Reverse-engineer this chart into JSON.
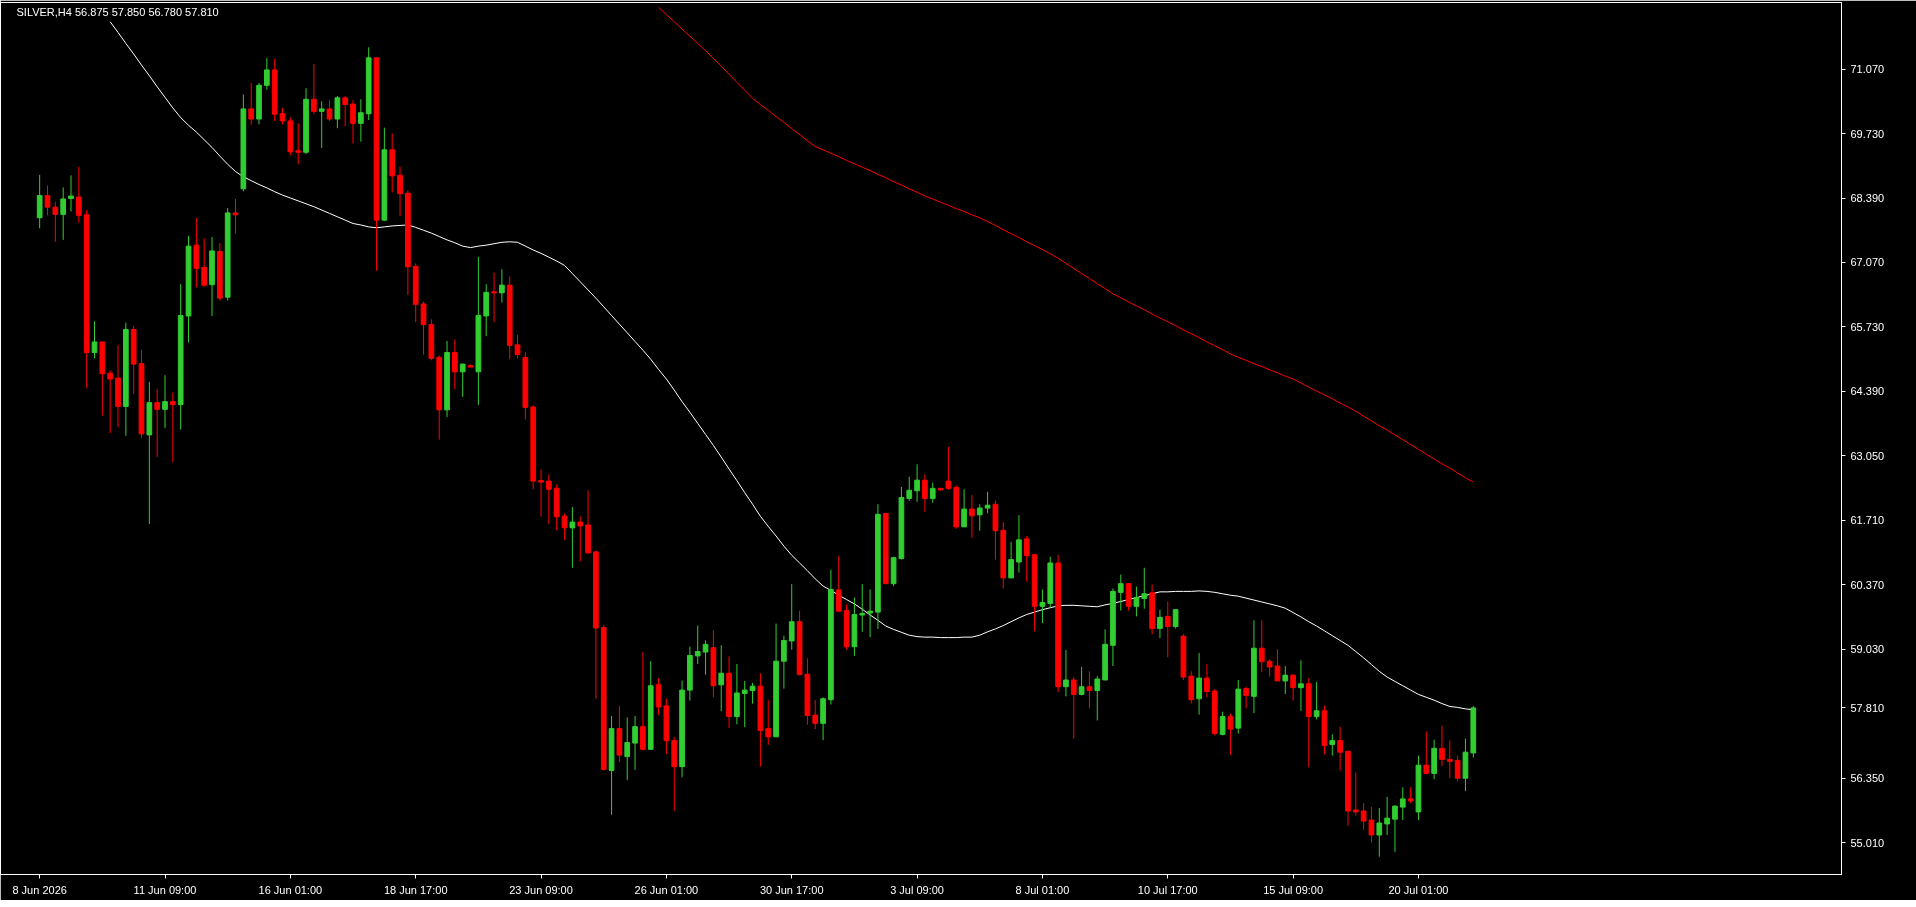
{
  "chart_data": {
    "type": "candlestick",
    "title": "SILVER,H4  56.875 57.850 56.780 57.810",
    "categories": [
      "8 Jun 2026",
      null,
      null,
      null,
      null,
      null,
      null,
      null,
      null,
      null,
      null,
      null,
      null,
      null,
      null,
      null,
      "11 Jun 09:00",
      null,
      null,
      null,
      null,
      null,
      null,
      null,
      null,
      null,
      null,
      null,
      null,
      null,
      null,
      null,
      "16 Jun 01:00",
      null,
      null,
      null,
      null,
      null,
      null,
      null,
      null,
      null,
      null,
      null,
      null,
      null,
      null,
      null,
      "18 Jun 17:00",
      null,
      null,
      null,
      null,
      null,
      null,
      null,
      null,
      null,
      null,
      null,
      null,
      null,
      null,
      null,
      "23 Jun 09:00",
      null,
      null,
      null,
      null,
      null,
      null,
      null,
      null,
      null,
      null,
      null,
      null,
      null,
      null,
      null,
      "26 Jun 01:00",
      null,
      null,
      null,
      null,
      null,
      null,
      null,
      null,
      null,
      null,
      null,
      null,
      null,
      null,
      null,
      "30 Jun 17:00",
      null,
      null,
      null,
      null,
      null,
      null,
      null,
      null,
      null,
      null,
      null,
      null,
      null,
      null,
      null,
      "3 Jul 09:00",
      null,
      null,
      null,
      null,
      null,
      null,
      null,
      null,
      null,
      null,
      null,
      null,
      null,
      null,
      null,
      "8 Jul 01:00",
      null,
      null,
      null,
      null,
      null,
      null,
      null,
      null,
      null,
      null,
      null,
      null,
      null,
      null,
      null,
      "10 Jul 17:00",
      null,
      null,
      null,
      null,
      null,
      null,
      null,
      null,
      null,
      null,
      null,
      null,
      null,
      null,
      null,
      "15 Jul 09:00",
      null,
      null,
      null,
      null,
      null,
      null,
      null,
      null,
      null,
      null,
      null,
      null,
      null,
      null,
      null,
      "20 Jul 01:00",
      null,
      null,
      null,
      null,
      null,
      null,
      null
    ],
    "ohlc": [
      [
        67.99,
        68.88,
        67.77,
        68.45
      ],
      [
        68.45,
        68.66,
        68.04,
        68.21
      ],
      [
        68.21,
        68.32,
        67.49,
        68.06
      ],
      [
        68.06,
        68.62,
        67.53,
        68.38
      ],
      [
        68.39,
        68.87,
        68.12,
        68.44
      ],
      [
        68.42,
        69.05,
        67.89,
        68.04
      ],
      [
        68.05,
        68.15,
        64.45,
        65.19
      ],
      [
        65.19,
        65.84,
        65.07,
        65.41
      ],
      [
        65.41,
        65.41,
        63.88,
        64.75
      ],
      [
        64.76,
        64.82,
        63.52,
        64.64
      ],
      [
        64.66,
        65.35,
        63.64,
        64.07
      ],
      [
        64.07,
        65.81,
        63.46,
        65.67
      ],
      [
        65.67,
        65.74,
        64.33,
        64.95
      ],
      [
        64.96,
        65.25,
        63.42,
        63.5
      ],
      [
        63.48,
        64.58,
        61.63,
        64.15
      ],
      [
        64.15,
        64.43,
        63.02,
        64.01
      ],
      [
        64.01,
        64.72,
        63.62,
        64.17
      ],
      [
        64.17,
        64.36,
        62.91,
        64.11
      ],
      [
        64.11,
        66.61,
        63.59,
        65.96
      ],
      [
        65.95,
        67.61,
        65.4,
        67.4
      ],
      [
        67.42,
        67.99,
        66.54,
        66.94
      ],
      [
        66.96,
        67.56,
        66.56,
        66.59
      ],
      [
        66.6,
        67.59,
        65.95,
        67.3
      ],
      [
        67.29,
        67.46,
        66.27,
        66.32
      ],
      [
        66.34,
        68.19,
        66.27,
        68.09
      ],
      [
        68.09,
        68.38,
        67.66,
        68.05
      ],
      [
        68.59,
        70.55,
        68.54,
        70.25
      ],
      [
        70.25,
        70.79,
        69.92,
        70.04
      ],
      [
        70.04,
        70.79,
        69.93,
        70.74
      ],
      [
        70.74,
        71.31,
        70.65,
        71.06
      ],
      [
        71.06,
        71.29,
        70.0,
        70.14
      ],
      [
        70.15,
        70.27,
        69.93,
        70.0
      ],
      [
        70.0,
        70.08,
        69.29,
        69.36
      ],
      [
        69.38,
        69.95,
        69.1,
        69.35
      ],
      [
        69.35,
        70.68,
        69.31,
        70.45
      ],
      [
        70.45,
        71.18,
        70.15,
        70.2
      ],
      [
        70.2,
        70.41,
        69.44,
        70.25
      ],
      [
        70.25,
        70.43,
        70.0,
        70.04
      ],
      [
        70.04,
        70.52,
        69.85,
        70.48
      ],
      [
        70.48,
        70.52,
        69.89,
        70.34
      ],
      [
        70.35,
        70.43,
        69.53,
        69.95
      ],
      [
        69.95,
        70.45,
        69.57,
        70.17
      ],
      [
        70.15,
        71.53,
        70.02,
        71.31
      ],
      [
        71.31,
        71.31,
        66.89,
        67.94
      ],
      [
        67.94,
        69.86,
        67.92,
        69.4
      ],
      [
        69.4,
        69.74,
        68.52,
        68.86
      ],
      [
        68.87,
        69.05,
        68.02,
        68.49
      ],
      [
        68.5,
        68.56,
        66.39,
        66.97
      ],
      [
        66.98,
        67.04,
        65.82,
        66.19
      ],
      [
        66.2,
        66.25,
        65.15,
        65.77
      ],
      [
        65.77,
        65.88,
        65.03,
        65.07
      ],
      [
        65.09,
        65.13,
        63.38,
        64.0
      ],
      [
        64.0,
        65.43,
        63.85,
        65.19
      ],
      [
        65.19,
        65.46,
        64.43,
        64.79
      ],
      [
        64.79,
        64.96,
        64.27,
        64.95
      ],
      [
        64.92,
        64.94,
        64.88,
        64.89
      ],
      [
        64.79,
        67.18,
        64.1,
        65.96
      ],
      [
        65.95,
        66.61,
        65.53,
        66.44
      ],
      [
        66.45,
        66.85,
        65.82,
        66.43
      ],
      [
        66.43,
        66.92,
        66.23,
        66.59
      ],
      [
        66.59,
        66.77,
        65.05,
        65.34
      ],
      [
        65.35,
        65.56,
        65.07,
        65.15
      ],
      [
        65.09,
        65.2,
        63.8,
        64.05
      ],
      [
        64.06,
        64.1,
        62.35,
        62.52
      ],
      [
        62.53,
        62.76,
        61.78,
        62.5
      ],
      [
        62.52,
        62.66,
        61.63,
        62.35
      ],
      [
        62.37,
        62.45,
        61.5,
        61.78
      ],
      [
        61.79,
        61.85,
        61.3,
        61.55
      ],
      [
        61.55,
        61.98,
        60.72,
        61.67
      ],
      [
        61.67,
        61.79,
        60.85,
        61.59
      ],
      [
        61.61,
        62.33,
        61.01,
        61.03
      ],
      [
        61.05,
        61.07,
        58.0,
        59.47
      ],
      [
        59.48,
        59.53,
        56.51,
        56.53
      ],
      [
        56.51,
        57.64,
        55.59,
        57.38
      ],
      [
        57.38,
        57.85,
        56.68,
        56.83
      ],
      [
        56.8,
        57.61,
        56.31,
        57.09
      ],
      [
        57.08,
        57.64,
        56.52,
        57.42
      ],
      [
        57.42,
        58.97,
        56.93,
        56.95
      ],
      [
        56.95,
        58.78,
        56.95,
        58.27
      ],
      [
        58.29,
        58.43,
        57.66,
        57.83
      ],
      [
        57.85,
        58.0,
        56.85,
        57.13
      ],
      [
        57.13,
        57.21,
        55.67,
        56.59
      ],
      [
        56.59,
        58.38,
        56.37,
        58.18
      ],
      [
        58.18,
        59.08,
        57.96,
        58.9
      ],
      [
        58.89,
        59.52,
        58.72,
        58.98
      ],
      [
        58.97,
        59.21,
        58.5,
        59.13
      ],
      [
        59.06,
        59.42,
        58.03,
        58.27
      ],
      [
        58.29,
        59.11,
        57.74,
        58.53
      ],
      [
        58.53,
        58.88,
        57.39,
        57.63
      ],
      [
        57.63,
        58.72,
        57.47,
        58.12
      ],
      [
        58.11,
        58.37,
        57.41,
        58.18
      ],
      [
        58.17,
        58.33,
        57.9,
        58.26
      ],
      [
        58.26,
        58.53,
        56.59,
        57.34
      ],
      [
        57.38,
        57.97,
        57.04,
        57.21
      ],
      [
        57.21,
        59.56,
        57.21,
        58.78
      ],
      [
        58.78,
        59.31,
        58.21,
        59.21
      ],
      [
        59.2,
        60.38,
        59.02,
        59.6
      ],
      [
        59.6,
        59.83,
        58.5,
        58.5
      ],
      [
        58.51,
        58.84,
        57.46,
        57.65
      ],
      [
        57.66,
        57.97,
        57.37,
        57.49
      ],
      [
        57.49,
        58.03,
        57.14,
        58.0
      ],
      [
        57.98,
        60.68,
        57.88,
        60.27
      ],
      [
        60.26,
        60.97,
        59.81,
        59.82
      ],
      [
        59.83,
        59.96,
        59.02,
        59.08
      ],
      [
        59.08,
        60.1,
        58.89,
        59.75
      ],
      [
        59.74,
        60.38,
        59.39,
        59.77
      ],
      [
        59.78,
        60.27,
        59.28,
        59.82
      ],
      [
        59.8,
        62.04,
        59.45,
        61.83
      ],
      [
        61.85,
        61.85,
        60.39,
        60.39
      ],
      [
        60.39,
        60.95,
        60.34,
        60.93
      ],
      [
        60.91,
        62.4,
        60.89,
        62.18
      ],
      [
        62.16,
        62.61,
        62.11,
        62.33
      ],
      [
        62.32,
        62.87,
        62.09,
        62.54
      ],
      [
        62.54,
        62.66,
        61.88,
        62.16
      ],
      [
        62.16,
        62.49,
        62.07,
        62.37
      ],
      [
        62.37,
        62.37,
        62.32,
        62.34
      ],
      [
        62.52,
        63.23,
        62.34,
        62.37
      ],
      [
        62.39,
        62.43,
        61.53,
        61.57
      ],
      [
        61.57,
        62.35,
        61.57,
        61.94
      ],
      [
        61.94,
        62.23,
        61.34,
        61.8
      ],
      [
        61.82,
        62.04,
        61.49,
        61.96
      ],
      [
        61.96,
        62.3,
        61.85,
        62.02
      ],
      [
        62.04,
        62.12,
        60.89,
        61.49
      ],
      [
        61.5,
        61.67,
        60.29,
        60.51
      ],
      [
        60.51,
        61.26,
        60.51,
        60.89
      ],
      [
        60.84,
        61.81,
        60.62,
        61.3
      ],
      [
        61.32,
        61.38,
        60.43,
        60.97
      ],
      [
        60.99,
        61.01,
        59.4,
        59.92
      ],
      [
        59.92,
        60.27,
        59.57,
        60.0
      ],
      [
        59.98,
        60.95,
        59.9,
        60.82
      ],
      [
        60.82,
        60.99,
        58.14,
        58.25
      ],
      [
        58.25,
        59.01,
        58.05,
        58.39
      ],
      [
        58.39,
        58.45,
        57.17,
        58.09
      ],
      [
        58.09,
        58.66,
        58.07,
        58.25
      ],
      [
        58.25,
        58.57,
        57.8,
        58.17
      ],
      [
        58.17,
        58.47,
        57.55,
        58.41
      ],
      [
        58.39,
        59.44,
        58.39,
        59.13
      ],
      [
        59.11,
        60.29,
        58.68,
        60.23
      ],
      [
        60.21,
        60.58,
        59.83,
        60.39
      ],
      [
        60.39,
        60.39,
        59.83,
        59.92
      ],
      [
        59.92,
        60.33,
        59.71,
        60.1
      ],
      [
        60.08,
        60.72,
        59.87,
        60.18
      ],
      [
        60.2,
        60.37,
        59.34,
        59.46
      ],
      [
        59.46,
        59.85,
        59.26,
        59.69
      ],
      [
        59.71,
        60.02,
        58.86,
        59.5
      ],
      [
        59.5,
        59.85,
        59.46,
        59.85
      ],
      [
        59.3,
        59.34,
        58.39,
        58.45
      ],
      [
        58.47,
        58.57,
        57.9,
        57.98
      ],
      [
        58.0,
        58.95,
        57.67,
        58.43
      ],
      [
        58.43,
        58.72,
        58.03,
        58.15
      ],
      [
        58.16,
        58.2,
        57.24,
        57.28
      ],
      [
        57.26,
        57.73,
        57.24,
        57.63
      ],
      [
        57.63,
        57.69,
        56.83,
        57.37
      ],
      [
        57.39,
        58.39,
        57.28,
        58.2
      ],
      [
        58.21,
        58.25,
        57.8,
        58.07
      ],
      [
        58.05,
        59.63,
        57.7,
        59.05
      ],
      [
        59.05,
        59.63,
        58.56,
        58.77
      ],
      [
        58.78,
        58.82,
        58.46,
        58.66
      ],
      [
        58.68,
        59.03,
        58.37,
        58.37
      ],
      [
        58.37,
        58.68,
        58.1,
        58.49
      ],
      [
        58.49,
        58.51,
        57.96,
        58.23
      ],
      [
        58.23,
        58.8,
        57.75,
        58.31
      ],
      [
        58.31,
        58.43,
        56.58,
        57.63
      ],
      [
        57.63,
        58.35,
        57.57,
        57.75
      ],
      [
        57.75,
        57.86,
        56.84,
        57.03
      ],
      [
        57.05,
        57.26,
        56.82,
        57.13
      ],
      [
        57.13,
        57.42,
        56.51,
        56.89
      ],
      [
        56.91,
        56.91,
        55.36,
        55.67
      ],
      [
        55.69,
        56.47,
        55.57,
        55.65
      ],
      [
        55.67,
        55.83,
        55.28,
        55.46
      ],
      [
        55.48,
        55.75,
        55.01,
        55.17
      ],
      [
        55.17,
        55.73,
        54.72,
        55.42
      ],
      [
        55.4,
        55.96,
        55.17,
        55.52
      ],
      [
        55.5,
        55.79,
        54.82,
        55.77
      ],
      [
        55.75,
        56.16,
        55.48,
        55.92
      ],
      [
        55.92,
        56.16,
        55.83,
        55.88
      ],
      [
        55.65,
        56.82,
        55.48,
        56.62
      ],
      [
        56.62,
        57.32,
        56.43,
        56.45
      ],
      [
        56.45,
        57.15,
        56.33,
        56.97
      ],
      [
        56.97,
        57.44,
        56.6,
        56.74
      ],
      [
        56.74,
        57.13,
        56.35,
        56.7
      ],
      [
        56.72,
        56.82,
        56.29,
        56.35
      ],
      [
        56.35,
        57.17,
        56.08,
        56.89
      ],
      [
        56.875,
        57.85,
        56.78,
        57.81
      ]
    ],
    "colors": [
      "#32cd32",
      "#ff0000",
      "#ff0000",
      "#32cd32",
      "#32cd32",
      "#ff0000",
      "#ff0000",
      "#32cd32",
      "#ff0000",
      "#ff0000",
      "#ff0000",
      "#32cd32",
      "#ff0000",
      "#ff0000",
      "#32cd32",
      "#ff0000",
      "#32cd32",
      "#ff0000",
      "#32cd32",
      "#32cd32",
      "#ff0000",
      "#ff0000",
      "#32cd32",
      "#ff0000",
      "#32cd32",
      "#ff0000",
      "#32cd32",
      "#ff0000",
      "#32cd32",
      "#32cd32",
      "#ff0000",
      "#ff0000",
      "#ff0000",
      "#ff0000",
      "#32cd32",
      "#ff0000",
      "#32cd32",
      "#ff0000",
      "#32cd32",
      "#ff0000",
      "#ff0000",
      "#32cd32",
      "#32cd32",
      "#ff0000",
      "#32cd32",
      "#ff0000",
      "#ff0000",
      "#ff0000",
      "#ff0000",
      "#ff0000",
      "#ff0000",
      "#ff0000",
      "#32cd32",
      "#ff0000",
      "#32cd32",
      "#ff0000",
      "#32cd32",
      "#32cd32",
      "#ff0000",
      "#32cd32",
      "#ff0000",
      "#ff0000",
      "#ff0000",
      "#ff0000",
      "#ff0000",
      "#ff0000",
      "#ff0000",
      "#ff0000",
      "#32cd32",
      "#ff0000",
      "#ff0000",
      "#ff0000",
      "#ff0000",
      "#32cd32",
      "#ff0000",
      "#32cd32",
      "#32cd32",
      "#ff0000",
      "#32cd32",
      "#ff0000",
      "#ff0000",
      "#ff0000",
      "#32cd32",
      "#32cd32",
      "#32cd32",
      "#32cd32",
      "#ff0000",
      "#32cd32",
      "#ff0000",
      "#32cd32",
      "#32cd32",
      "#32cd32",
      "#ff0000",
      "#ff0000",
      "#32cd32",
      "#32cd32",
      "#32cd32",
      "#ff0000",
      "#ff0000",
      "#ff0000",
      "#32cd32",
      "#32cd32",
      "#ff0000",
      "#ff0000",
      "#32cd32",
      "#32cd32",
      "#32cd32",
      "#32cd32",
      "#ff0000",
      "#32cd32",
      "#32cd32",
      "#32cd32",
      "#32cd32",
      "#ff0000",
      "#32cd32",
      "#ff0000",
      "#ff0000",
      "#ff0000",
      "#32cd32",
      "#ff0000",
      "#32cd32",
      "#32cd32",
      "#ff0000",
      "#ff0000",
      "#32cd32",
      "#32cd32",
      "#ff0000",
      "#ff0000",
      "#32cd32",
      "#32cd32",
      "#ff0000",
      "#32cd32",
      "#ff0000",
      "#32cd32",
      "#ff0000",
      "#32cd32",
      "#32cd32",
      "#32cd32",
      "#32cd32",
      "#ff0000",
      "#32cd32",
      "#32cd32",
      "#ff0000",
      "#32cd32",
      "#ff0000",
      "#32cd32",
      "#ff0000",
      "#ff0000",
      "#32cd32",
      "#ff0000",
      "#ff0000",
      "#32cd32",
      "#ff0000",
      "#32cd32",
      "#ff0000",
      "#32cd32",
      "#ff0000",
      "#ff0000",
      "#ff0000",
      "#32cd32",
      "#ff0000",
      "#32cd32",
      "#ff0000",
      "#32cd32",
      "#ff0000",
      "#32cd32",
      "#ff0000",
      "#ff0000",
      "#ff0000",
      "#ff0000",
      "#ff0000",
      "#32cd32",
      "#32cd32",
      "#32cd32",
      "#32cd32",
      "#ff0000",
      "#32cd32",
      "#ff0000",
      "#32cd32",
      "#ff0000",
      "#ff0000",
      "#ff0000",
      "#32cd32",
      "#32cd32"
    ],
    "series": [
      {
        "type": "line",
        "color": "#ffffff",
        "values": [
          null,
          null,
          null,
          null,
          null,
          null,
          null,
          null,
          null,
          72.06,
          71.84,
          71.61,
          71.39,
          71.16,
          70.94,
          70.71,
          70.49,
          70.27,
          70.07,
          69.91,
          69.77,
          69.61,
          69.45,
          69.27,
          69.1,
          68.95,
          68.84,
          68.76,
          68.68,
          68.61,
          68.53,
          68.46,
          68.4,
          68.34,
          68.28,
          68.22,
          68.15,
          68.08,
          68.01,
          67.94,
          67.87,
          67.84,
          67.8,
          67.78,
          67.8,
          67.82,
          67.83,
          67.84,
          67.79,
          67.73,
          67.67,
          67.6,
          67.53,
          67.47,
          67.4,
          67.37,
          67.4,
          67.42,
          67.45,
          67.48,
          67.49,
          67.48,
          67.4,
          67.32,
          67.25,
          67.17,
          67.09,
          67.0,
          66.83,
          66.66,
          66.49,
          66.32,
          66.14,
          65.96,
          65.78,
          65.6,
          65.42,
          65.24,
          65.05,
          64.84,
          64.64,
          64.41,
          64.17,
          63.95,
          63.72,
          63.49,
          63.26,
          63.02,
          62.77,
          62.53,
          62.28,
          62.04,
          61.79,
          61.58,
          61.38,
          61.17,
          60.98,
          60.82,
          60.66,
          60.49,
          60.34,
          60.25,
          60.15,
          60.06,
          59.97,
          59.86,
          59.74,
          59.63,
          59.51,
          59.44,
          59.38,
          59.32,
          59.29,
          59.28,
          59.28,
          59.27,
          59.27,
          59.27,
          59.28,
          59.28,
          59.32,
          59.39,
          59.45,
          59.52,
          59.6,
          59.68,
          59.75,
          59.8,
          59.85,
          59.89,
          59.93,
          59.94,
          59.94,
          59.93,
          59.92,
          59.91,
          59.95,
          59.98,
          60.02,
          60.06,
          60.1,
          60.14,
          60.18,
          60.22,
          60.22,
          60.23,
          60.23,
          60.23,
          60.24,
          60.23,
          60.21,
          60.18,
          60.15,
          60.13,
          60.09,
          60.05,
          60.01,
          59.97,
          59.93,
          59.88,
          59.79,
          59.7,
          59.6,
          59.51,
          59.41,
          59.31,
          59.21,
          59.11,
          58.98,
          58.85,
          58.71,
          58.57,
          58.45,
          58.36,
          58.27,
          58.18,
          58.09,
          58.03,
          57.97,
          57.9,
          57.84,
          57.82,
          57.79,
          57.77
        ]
      },
      {
        "type": "line",
        "color": "#ff0000",
        "values": [
          null,
          null,
          null,
          null,
          null,
          null,
          null,
          null,
          null,
          null,
          null,
          null,
          null,
          null,
          null,
          null,
          null,
          null,
          null,
          null,
          null,
          null,
          null,
          null,
          null,
          null,
          null,
          null,
          null,
          null,
          null,
          null,
          null,
          null,
          null,
          null,
          null,
          null,
          null,
          null,
          null,
          null,
          null,
          null,
          null,
          null,
          null,
          null,
          null,
          null,
          null,
          null,
          null,
          null,
          null,
          null,
          null,
          null,
          null,
          null,
          null,
          null,
          null,
          null,
          null,
          null,
          null,
          null,
          null,
          null,
          null,
          null,
          null,
          null,
          null,
          null,
          null,
          null,
          null,
          72.36,
          72.21,
          72.06,
          71.91,
          71.76,
          71.61,
          71.46,
          71.3,
          71.14,
          70.97,
          70.8,
          70.64,
          70.47,
          70.34,
          70.22,
          70.09,
          69.97,
          69.84,
          69.72,
          69.59,
          69.47,
          69.4,
          69.33,
          69.26,
          69.18,
          69.11,
          69.04,
          68.97,
          68.89,
          68.82,
          68.74,
          68.67,
          68.59,
          68.52,
          68.44,
          68.38,
          68.31,
          68.25,
          68.18,
          68.12,
          68.05,
          67.99,
          67.91,
          67.83,
          67.74,
          67.66,
          67.58,
          67.49,
          67.41,
          67.33,
          67.24,
          67.15,
          67.04,
          66.94,
          66.83,
          66.73,
          66.62,
          66.52,
          66.41,
          66.33,
          66.24,
          66.16,
          66.08,
          65.99,
          65.91,
          65.83,
          65.75,
          65.66,
          65.58,
          65.5,
          65.41,
          65.33,
          65.25,
          65.16,
          65.09,
          65.03,
          64.96,
          64.9,
          64.83,
          64.77,
          64.7,
          64.64,
          64.56,
          64.47,
          64.39,
          64.31,
          64.23,
          64.14,
          64.06,
          63.97,
          63.87,
          63.77,
          63.67,
          63.58,
          63.48,
          63.38,
          63.28,
          63.18,
          63.08,
          62.98,
          62.88,
          62.79,
          62.69,
          62.59,
          62.5
        ]
      }
    ],
    "ylim": [
      54.35,
      72.46
    ],
    "yticks": [
      {
        "value": 55.01,
        "label": "55.010"
      },
      {
        "value": 56.35,
        "label": "56.350"
      },
      {
        "value": 57.81,
        "label": "57.810"
      },
      {
        "value": 59.03,
        "label": "59.030"
      },
      {
        "value": 60.37,
        "label": "60.370"
      },
      {
        "value": 61.71,
        "label": "61.710"
      },
      {
        "value": 63.05,
        "label": "63.050"
      },
      {
        "value": 64.39,
        "label": "64.390"
      },
      {
        "value": 65.73,
        "label": "65.730"
      },
      {
        "value": 67.07,
        "label": "67.070"
      },
      {
        "value": 68.39,
        "label": "68.390"
      },
      {
        "value": 69.73,
        "label": "69.730"
      },
      {
        "value": 71.07,
        "label": "71.070"
      }
    ],
    "grid": false
  }
}
